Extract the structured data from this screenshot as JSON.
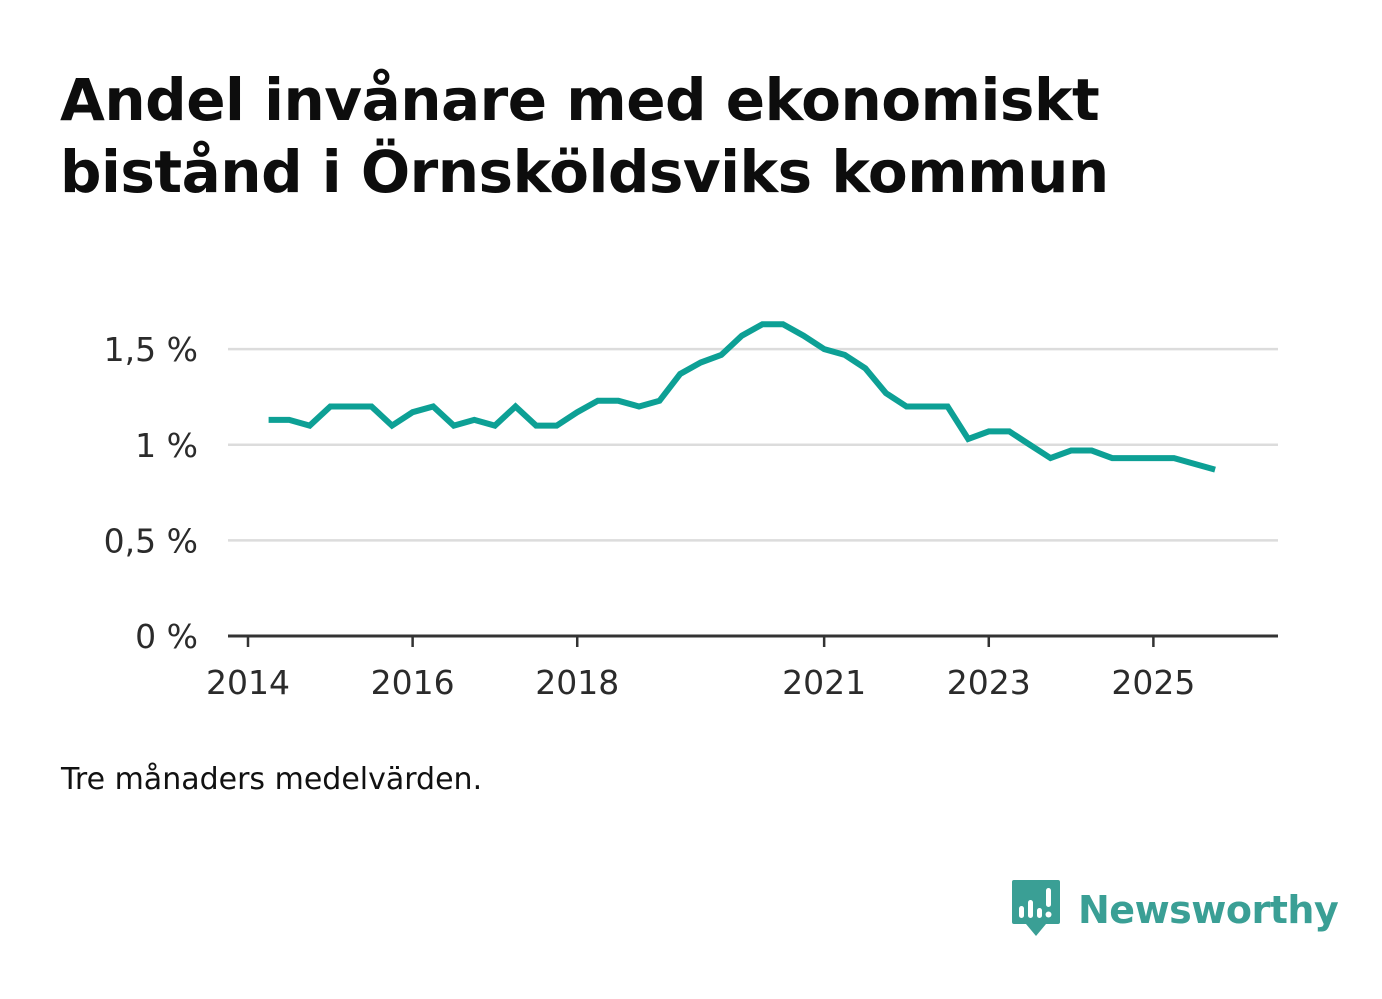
{
  "title": "Andel invånare med ekonomiskt bistånd i Örnsköldsviks kommun",
  "note": "Tre månaders medelvärden.",
  "brand": {
    "name": "Newsworthy",
    "icon": "newsworthy-logo-icon",
    "color": "#3a9f95"
  },
  "chart_data": {
    "type": "line",
    "title": "Andel invånare med ekonomiskt bistånd i Örnsköldsviks kommun",
    "xlabel": "",
    "ylabel": "",
    "grid": true,
    "ylim": [
      0,
      1.6
    ],
    "xlim": [
      2014.0,
      2027.0
    ],
    "y_ticks": [
      {
        "value": 0,
        "label": "0 %"
      },
      {
        "value": 0.5,
        "label": "0,5 %"
      },
      {
        "value": 1,
        "label": "1 %"
      },
      {
        "value": 1.5,
        "label": "1,5 %"
      }
    ],
    "x_ticks": [
      {
        "value": 2014,
        "label": "2014"
      },
      {
        "value": 2016,
        "label": "2016"
      },
      {
        "value": 2018,
        "label": "2018"
      },
      {
        "value": 2021,
        "label": "2021"
      },
      {
        "value": 2023,
        "label": "2023"
      },
      {
        "value": 2025,
        "label": "2025"
      }
    ],
    "series": [
      {
        "name": "Andel invånare med ekonomiskt bistånd",
        "color": "#0da095",
        "x": [
          2014.25,
          2014.5,
          2014.75,
          2015.0,
          2015.25,
          2015.5,
          2015.75,
          2016.0,
          2016.25,
          2016.5,
          2016.75,
          2017.0,
          2017.25,
          2017.5,
          2017.75,
          2018.0,
          2018.25,
          2018.5,
          2018.75,
          2019.0,
          2019.25,
          2019.5,
          2019.75,
          2020.0,
          2020.25,
          2020.5,
          2020.75,
          2021.0,
          2021.25,
          2021.5,
          2021.75,
          2022.0,
          2022.25,
          2022.5,
          2022.75,
          2023.0,
          2023.25,
          2023.5,
          2023.75,
          2024.0,
          2024.25,
          2024.5,
          2024.75,
          2025.0,
          2025.25,
          2025.5,
          2025.75
        ],
        "values": [
          1.13,
          1.13,
          1.1,
          1.2,
          1.2,
          1.2,
          1.1,
          1.17,
          1.2,
          1.1,
          1.13,
          1.1,
          1.2,
          1.1,
          1.1,
          1.17,
          1.23,
          1.23,
          1.2,
          1.23,
          1.37,
          1.43,
          1.47,
          1.57,
          1.63,
          1.63,
          1.57,
          1.5,
          1.47,
          1.4,
          1.27,
          1.2,
          1.2,
          1.2,
          1.03,
          1.07,
          1.07,
          1.0,
          0.93,
          0.97,
          0.97,
          0.93,
          0.93,
          0.93,
          0.93,
          0.9,
          0.87
        ]
      }
    ]
  }
}
